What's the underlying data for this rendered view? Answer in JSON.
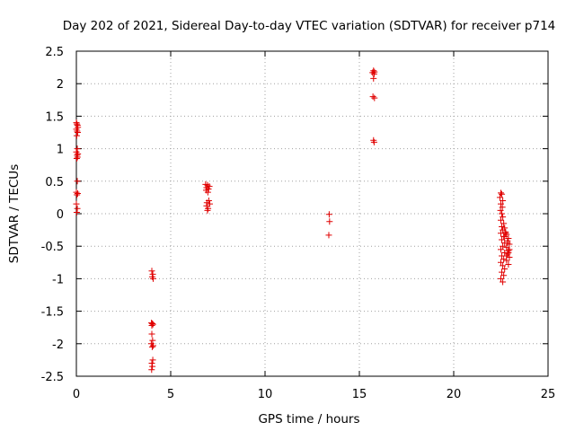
{
  "chart_data": {
    "type": "scatter",
    "title": "Day 202 of 2021, Sidereal Day-to-day VTEC variation (SDTVAR) for receiver p714",
    "xlabel": "GPS time / hours",
    "ylabel": "SDTVAR / TECUs",
    "xlim": [
      0,
      25
    ],
    "ylim": [
      -2.5,
      2.5
    ],
    "xticks": [
      0,
      5,
      10,
      15,
      20,
      25
    ],
    "xtick_labels": [
      "0",
      "5",
      "10",
      "15",
      "20",
      "25"
    ],
    "yticks": [
      -2.5,
      -2,
      -1.5,
      -1,
      -0.5,
      0,
      0.5,
      1,
      1.5,
      2,
      2.5
    ],
    "ytick_labels": [
      "-2.5",
      "-2",
      "-1.5",
      "-1",
      "-0.5",
      "0",
      "0.5",
      "1",
      "1.5",
      "2",
      "2.5"
    ],
    "grid": true,
    "marker": "+",
    "color": "#e00000",
    "series": [
      {
        "name": "SDTVAR",
        "points": [
          [
            0.0,
            1.4
          ],
          [
            0.03,
            1.38
          ],
          [
            0.06,
            1.36
          ],
          [
            0.08,
            1.33
          ],
          [
            0.0,
            1.3
          ],
          [
            0.04,
            1.27
          ],
          [
            0.07,
            1.25
          ],
          [
            0.02,
            1.2
          ],
          [
            0.05,
            1.0
          ],
          [
            0.0,
            0.95
          ],
          [
            0.08,
            0.92
          ],
          [
            0.04,
            0.9
          ],
          [
            0.06,
            0.87
          ],
          [
            0.02,
            0.85
          ],
          [
            0.05,
            0.5
          ],
          [
            0.0,
            0.33
          ],
          [
            0.07,
            0.31
          ],
          [
            0.03,
            0.29
          ],
          [
            0.0,
            0.15
          ],
          [
            0.05,
            0.08
          ],
          [
            0.02,
            0.02
          ],
          [
            4.0,
            -0.88
          ],
          [
            4.05,
            -0.93
          ],
          [
            4.02,
            -0.97
          ],
          [
            4.07,
            -1.0
          ],
          [
            3.98,
            -1.68
          ],
          [
            4.02,
            -1.69
          ],
          [
            4.06,
            -1.7
          ],
          [
            4.0,
            -1.72
          ],
          [
            4.0,
            -1.85
          ],
          [
            4.04,
            -1.95
          ],
          [
            3.97,
            -2.0
          ],
          [
            4.07,
            -2.03
          ],
          [
            4.02,
            -2.05
          ],
          [
            4.05,
            -2.25
          ],
          [
            4.0,
            -2.3
          ],
          [
            4.03,
            -2.35
          ],
          [
            3.99,
            -2.4
          ],
          [
            6.85,
            0.45
          ],
          [
            6.95,
            0.44
          ],
          [
            7.05,
            0.42
          ],
          [
            6.9,
            0.4
          ],
          [
            7.0,
            0.38
          ],
          [
            6.88,
            0.36
          ],
          [
            6.97,
            0.33
          ],
          [
            7.02,
            0.2
          ],
          [
            6.92,
            0.17
          ],
          [
            7.07,
            0.15
          ],
          [
            6.9,
            0.12
          ],
          [
            6.98,
            0.08
          ],
          [
            6.95,
            0.05
          ],
          [
            13.4,
            -0.01
          ],
          [
            13.42,
            -0.12
          ],
          [
            13.38,
            -0.33
          ],
          [
            15.75,
            2.2
          ],
          [
            15.8,
            2.18
          ],
          [
            15.7,
            2.17
          ],
          [
            15.78,
            2.15
          ],
          [
            15.75,
            2.08
          ],
          [
            15.72,
            1.8
          ],
          [
            15.8,
            1.78
          ],
          [
            15.75,
            1.13
          ],
          [
            15.78,
            1.1
          ],
          [
            22.5,
            0.32
          ],
          [
            22.55,
            0.3
          ],
          [
            22.45,
            0.25
          ],
          [
            22.6,
            0.2
          ],
          [
            22.5,
            0.15
          ],
          [
            22.58,
            0.1
          ],
          [
            22.48,
            0.05
          ],
          [
            22.55,
            0.0
          ],
          [
            22.6,
            -0.05
          ],
          [
            22.5,
            -0.1
          ],
          [
            22.65,
            -0.15
          ],
          [
            22.55,
            -0.2
          ],
          [
            22.7,
            -0.22
          ],
          [
            22.6,
            -0.25
          ],
          [
            22.75,
            -0.28
          ],
          [
            22.5,
            -0.3
          ],
          [
            22.8,
            -0.32
          ],
          [
            22.65,
            -0.35
          ],
          [
            22.9,
            -0.38
          ],
          [
            22.55,
            -0.4
          ],
          [
            22.85,
            -0.42
          ],
          [
            22.7,
            -0.45
          ],
          [
            22.95,
            -0.47
          ],
          [
            22.6,
            -0.5
          ],
          [
            22.8,
            -0.52
          ],
          [
            22.5,
            -0.55
          ],
          [
            22.9,
            -0.57
          ],
          [
            22.7,
            -0.6
          ],
          [
            22.85,
            -0.62
          ],
          [
            22.55,
            -0.65
          ],
          [
            22.95,
            -0.67
          ],
          [
            22.65,
            -0.7
          ],
          [
            22.8,
            -0.72
          ],
          [
            22.5,
            -0.75
          ],
          [
            22.9,
            -0.78
          ],
          [
            22.6,
            -0.8
          ],
          [
            22.7,
            -0.85
          ],
          [
            22.55,
            -0.9
          ],
          [
            22.65,
            -0.95
          ],
          [
            22.5,
            -1.0
          ],
          [
            22.6,
            -1.05
          ],
          [
            22.75,
            -0.3
          ],
          [
            22.85,
            -0.45
          ],
          [
            22.95,
            -0.55
          ],
          [
            22.8,
            -0.65
          ],
          [
            22.9,
            -0.6
          ],
          [
            22.7,
            -0.35
          ]
        ]
      }
    ]
  }
}
